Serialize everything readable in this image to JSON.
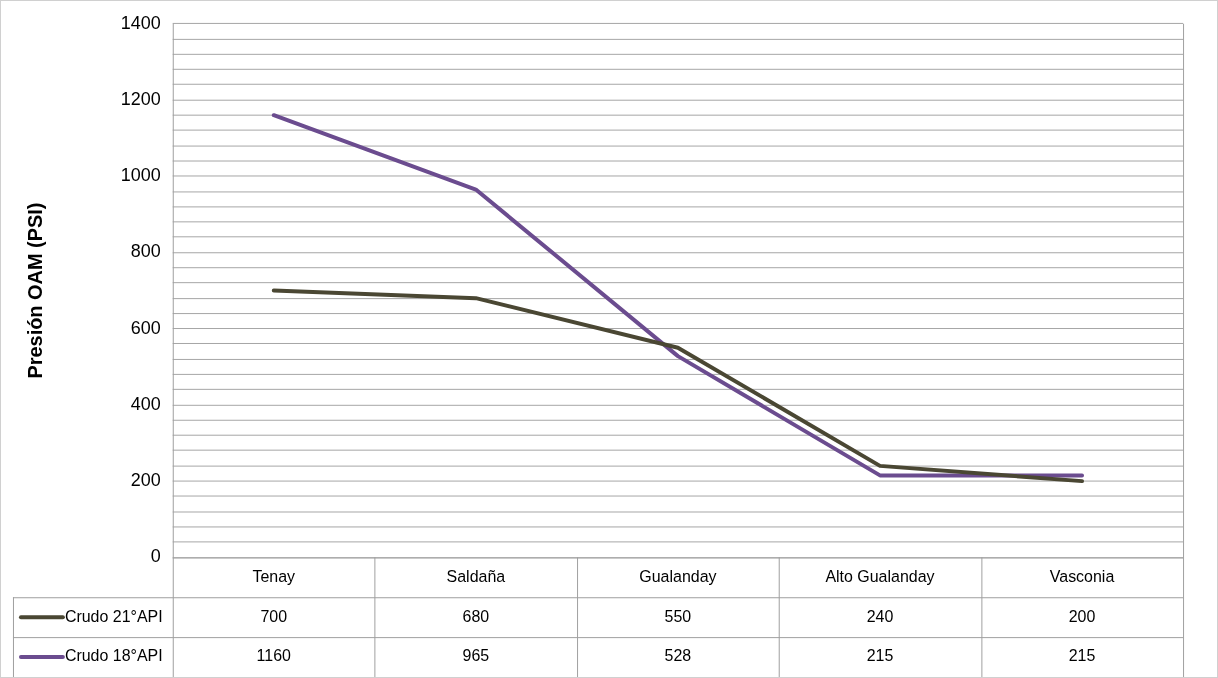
{
  "chart_data": {
    "type": "line",
    "ylabel": "Presión OAM (PSI)",
    "categories": [
      "Tenay",
      "Saldaña",
      "Gualanday",
      "Alto Gualanday",
      "Vasconia"
    ],
    "series": [
      {
        "name": "Crudo 21°API",
        "color": "#4a4733",
        "values": [
          700,
          680,
          550,
          240,
          200
        ]
      },
      {
        "name": "Crudo 18°API",
        "color": "#6b4c8f",
        "values": [
          1160,
          965,
          528,
          215,
          215
        ]
      }
    ],
    "ylim": [
      0,
      1400
    ],
    "yticks": [
      0,
      {
        "value": 40,
        "label": null
      },
      {
        "value": 80,
        "label": null
      },
      {
        "value": 120,
        "label": null
      },
      {
        "value": 160,
        "label": null
      },
      200,
      {
        "value": 240,
        "label": null
      },
      {
        "value": 280,
        "label": null
      },
      {
        "value": 320,
        "label": null
      },
      {
        "value": 360,
        "label": null
      },
      400,
      {
        "value": 440,
        "label": null
      },
      {
        "value": 480,
        "label": null
      },
      {
        "value": 520,
        "label": null
      },
      {
        "value": 560,
        "label": null
      },
      600,
      {
        "value": 640,
        "label": null
      },
      {
        "value": 680,
        "label": null
      },
      {
        "value": 720,
        "label": null
      },
      {
        "value": 760,
        "label": null
      },
      800,
      {
        "value": 840,
        "label": null
      },
      {
        "value": 880,
        "label": null
      },
      {
        "value": 920,
        "label": null
      },
      {
        "value": 960,
        "label": null
      },
      1000,
      {
        "value": 1040,
        "label": null
      },
      {
        "value": 1080,
        "label": null
      },
      {
        "value": 1120,
        "label": null
      },
      {
        "value": 1160,
        "label": null
      },
      1200,
      {
        "value": 1240,
        "label": null
      },
      {
        "value": 1280,
        "label": null
      },
      {
        "value": 1320,
        "label": null
      },
      {
        "value": 1360,
        "label": null
      },
      1400
    ],
    "grid": "y",
    "legend": "bottom",
    "marker": "none",
    "line_style": "solid",
    "data_labels": true
  }
}
